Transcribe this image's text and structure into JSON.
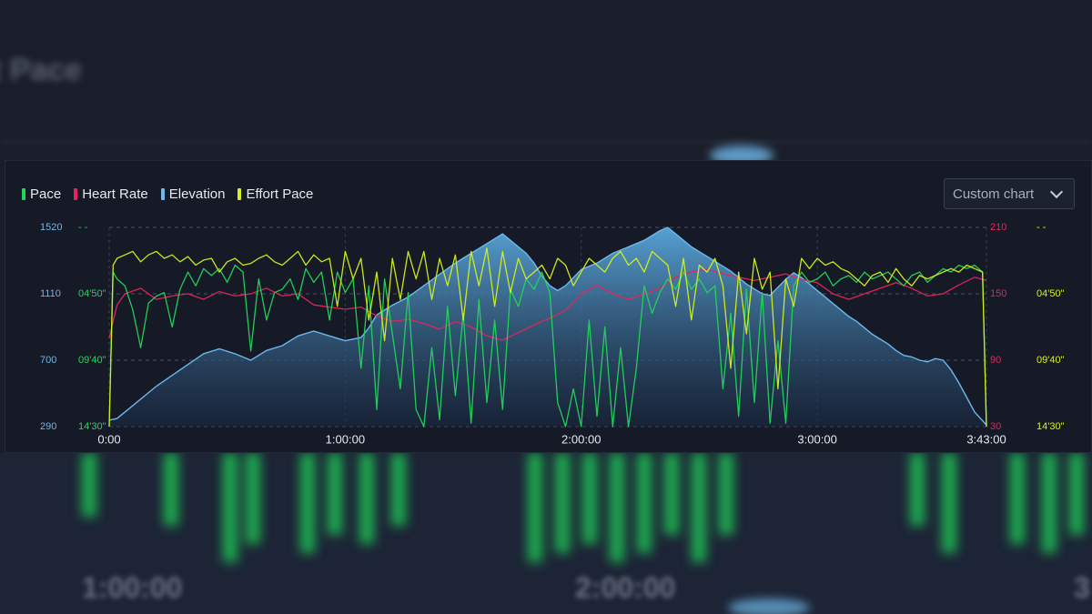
{
  "background": {
    "title": "t Pace",
    "bottom_labels": [
      "1:00:00",
      "2:00:00",
      "3"
    ]
  },
  "legend": [
    {
      "label": "Pace",
      "color": "#22d65a"
    },
    {
      "label": "Heart Rate",
      "color": "#e8245a"
    },
    {
      "label": "Elevation",
      "color": "#6ab8ec"
    },
    {
      "label": "Effort Pace",
      "color": "#d4f01e"
    }
  ],
  "dropdown": {
    "label": "Custom chart"
  },
  "chart_data": {
    "type": "line",
    "x_unit": "elapsed time (minutes)",
    "x_ticks": [
      {
        "value": 0,
        "label": "0:00"
      },
      {
        "value": 60,
        "label": "1:00:00"
      },
      {
        "value": 120,
        "label": "2:00:00"
      },
      {
        "value": 180,
        "label": "3:00:00"
      },
      {
        "value": 223,
        "label": "3:43:00"
      }
    ],
    "xlim": [
      0,
      223
    ],
    "grid": true,
    "legend_position": "top-left",
    "axes": {
      "elevation": {
        "side": "left-outer",
        "ylim": [
          290,
          1520
        ],
        "ticks": [
          "290",
          "700",
          "1110",
          "1520"
        ],
        "color": "#6ab8ec"
      },
      "pace": {
        "side": "left-inner",
        "ylim_seconds_per_km": [
          870,
          290
        ],
        "ticks": [
          "14'30\"",
          "09'40\"",
          "04'50\"",
          "- -"
        ],
        "color": "#22d65a"
      },
      "heart_rate": {
        "side": "right-inner",
        "ylim": [
          30,
          210
        ],
        "ticks": [
          "30",
          "90",
          "150",
          "210"
        ],
        "color": "#e8245a"
      },
      "effort_pace": {
        "side": "right-outer",
        "ylim_seconds_per_km": [
          870,
          290
        ],
        "ticks": [
          "14'30\"",
          "09'40\"",
          "04'50\"",
          "- -"
        ],
        "color": "#d4f01e"
      }
    },
    "series": [
      {
        "name": "Elevation",
        "axis": "elevation",
        "style": "area",
        "color": "#6ab8ec",
        "x": [
          0,
          2,
          6,
          12,
          18,
          24,
          28,
          32,
          36,
          40,
          44,
          48,
          52,
          56,
          60,
          64,
          66,
          68,
          72,
          76,
          80,
          84,
          88,
          92,
          96,
          100,
          104,
          106,
          108,
          110,
          112,
          114,
          116,
          118,
          120,
          124,
          128,
          132,
          136,
          140,
          142,
          144,
          146,
          148,
          150,
          152,
          154,
          156,
          158,
          160,
          162,
          164,
          166,
          168,
          170,
          172,
          174,
          176,
          178,
          180,
          182,
          184,
          186,
          188,
          190,
          192,
          194,
          196,
          198,
          200,
          202,
          204,
          206,
          208,
          210,
          212,
          214,
          216,
          218,
          220,
          223
        ],
        "y": [
          330,
          340,
          420,
          540,
          640,
          740,
          770,
          740,
          700,
          760,
          790,
          850,
          880,
          850,
          820,
          840,
          900,
          980,
          1040,
          1090,
          1160,
          1230,
          1300,
          1360,
          1420,
          1480,
          1400,
          1360,
          1300,
          1220,
          1160,
          1130,
          1160,
          1210,
          1260,
          1300,
          1360,
          1400,
          1440,
          1500,
          1520,
          1480,
          1440,
          1400,
          1370,
          1340,
          1310,
          1280,
          1250,
          1210,
          1170,
          1140,
          1110,
          1100,
          1150,
          1200,
          1240,
          1210,
          1170,
          1130,
          1090,
          1050,
          1010,
          970,
          940,
          900,
          860,
          830,
          800,
          760,
          730,
          720,
          700,
          690,
          710,
          700,
          640,
          560,
          470,
          380,
          300
        ]
      },
      {
        "name": "Heart Rate",
        "axis": "heart_rate",
        "style": "line",
        "color": "#e8245a",
        "x": [
          0,
          2,
          4,
          8,
          12,
          16,
          20,
          24,
          28,
          32,
          36,
          40,
          44,
          48,
          52,
          56,
          60,
          64,
          68,
          72,
          76,
          80,
          84,
          88,
          92,
          96,
          100,
          104,
          108,
          112,
          116,
          120,
          124,
          128,
          132,
          136,
          140,
          144,
          148,
          152,
          156,
          160,
          164,
          168,
          172,
          176,
          180,
          184,
          188,
          192,
          196,
          200,
          204,
          208,
          212,
          216,
          220,
          223
        ],
        "y": [
          110,
          140,
          150,
          155,
          145,
          148,
          150,
          145,
          152,
          148,
          150,
          155,
          148,
          150,
          140,
          138,
          136,
          138,
          130,
          125,
          127,
          123,
          118,
          125,
          120,
          112,
          108,
          115,
          122,
          128,
          135,
          150,
          158,
          150,
          145,
          150,
          155,
          165,
          170,
          172,
          168,
          165,
          162,
          165,
          168,
          163,
          160,
          150,
          145,
          150,
          155,
          160,
          155,
          148,
          150,
          158,
          165,
          162
        ]
      },
      {
        "name": "Pace",
        "axis": "pace",
        "style": "line",
        "color": "#22d65a",
        "x": [
          0,
          1,
          2,
          4,
          6,
          8,
          10,
          12,
          14,
          16,
          18,
          20,
          22,
          24,
          26,
          28,
          30,
          32,
          34,
          36,
          38,
          40,
          42,
          44,
          46,
          48,
          50,
          52,
          54,
          56,
          58,
          60,
          62,
          64,
          66,
          68,
          70,
          72,
          74,
          76,
          78,
          80,
          82,
          84,
          86,
          88,
          90,
          92,
          94,
          96,
          98,
          100,
          102,
          104,
          106,
          108,
          110,
          112,
          114,
          116,
          118,
          120,
          122,
          124,
          126,
          128,
          130,
          132,
          134,
          136,
          138,
          140,
          142,
          144,
          146,
          148,
          150,
          152,
          154,
          156,
          158,
          160,
          162,
          164,
          166,
          168,
          170,
          172,
          174,
          176,
          178,
          180,
          182,
          184,
          186,
          188,
          190,
          192,
          194,
          196,
          198,
          200,
          202,
          204,
          206,
          208,
          210,
          212,
          214,
          216,
          218,
          220,
          222,
          223
        ],
        "y": [
          870,
          420,
          440,
          460,
          530,
          640,
          510,
          490,
          480,
          580,
          470,
          420,
          460,
          410,
          430,
          410,
          450,
          400,
          420,
          650,
          440,
          560,
          480,
          470,
          440,
          500,
          410,
          450,
          420,
          560,
          420,
          480,
          440,
          700,
          460,
          820,
          440,
          600,
          760,
          480,
          820,
          870,
          640,
          850,
          520,
          780,
          540,
          860,
          500,
          800,
          560,
          820,
          470,
          520,
          440,
          470,
          420,
          480,
          800,
          870,
          760,
          870,
          560,
          840,
          580,
          870,
          640,
          870,
          700,
          460,
          540,
          480,
          440,
          470,
          420,
          470,
          440,
          480,
          460,
          760,
          540,
          840,
          470,
          800,
          480,
          860,
          620,
          860,
          460,
          420,
          450,
          440,
          420,
          460,
          440,
          430,
          450,
          420,
          440,
          430,
          420,
          440,
          460,
          430,
          420,
          450,
          430,
          410,
          420,
          400,
          410,
          400,
          420,
          870
        ]
      },
      {
        "name": "Effort Pace",
        "axis": "effort_pace",
        "style": "line",
        "color": "#d4f01e",
        "x": [
          0,
          1,
          2,
          4,
          6,
          8,
          10,
          12,
          14,
          16,
          18,
          20,
          22,
          24,
          26,
          28,
          30,
          32,
          34,
          36,
          38,
          40,
          42,
          44,
          46,
          48,
          50,
          52,
          54,
          56,
          58,
          60,
          62,
          64,
          66,
          68,
          70,
          72,
          74,
          76,
          78,
          80,
          82,
          84,
          86,
          88,
          90,
          92,
          94,
          96,
          98,
          100,
          102,
          104,
          106,
          108,
          110,
          112,
          114,
          116,
          118,
          120,
          122,
          124,
          126,
          128,
          130,
          132,
          134,
          136,
          138,
          140,
          142,
          144,
          146,
          148,
          150,
          152,
          154,
          156,
          158,
          160,
          162,
          164,
          166,
          168,
          170,
          172,
          174,
          176,
          178,
          180,
          182,
          184,
          186,
          188,
          190,
          192,
          194,
          196,
          198,
          200,
          202,
          204,
          206,
          208,
          210,
          212,
          214,
          216,
          218,
          220,
          222,
          223
        ],
        "y": [
          870,
          400,
          380,
          370,
          360,
          390,
          370,
          360,
          380,
          370,
          390,
          375,
          400,
          385,
          380,
          420,
          390,
          380,
          400,
          395,
          380,
          370,
          390,
          400,
          380,
          360,
          400,
          370,
          390,
          380,
          520,
          360,
          440,
          380,
          560,
          420,
          620,
          380,
          500,
          360,
          440,
          360,
          500,
          380,
          460,
          370,
          560,
          360,
          460,
          350,
          520,
          360,
          480,
          380,
          440,
          420,
          400,
          440,
          380,
          400,
          460,
          420,
          380,
          400,
          420,
          380,
          360,
          400,
          380,
          420,
          360,
          380,
          400,
          520,
          380,
          560,
          400,
          420,
          380,
          460,
          700,
          420,
          600,
          380,
          470,
          420,
          760,
          440,
          520,
          380,
          410,
          380,
          400,
          390,
          410,
          420,
          440,
          460,
          430,
          420,
          450,
          410,
          440,
          460,
          430,
          440,
          430,
          420,
          410,
          420,
          400,
          410,
          420,
          870
        ]
      }
    ]
  }
}
